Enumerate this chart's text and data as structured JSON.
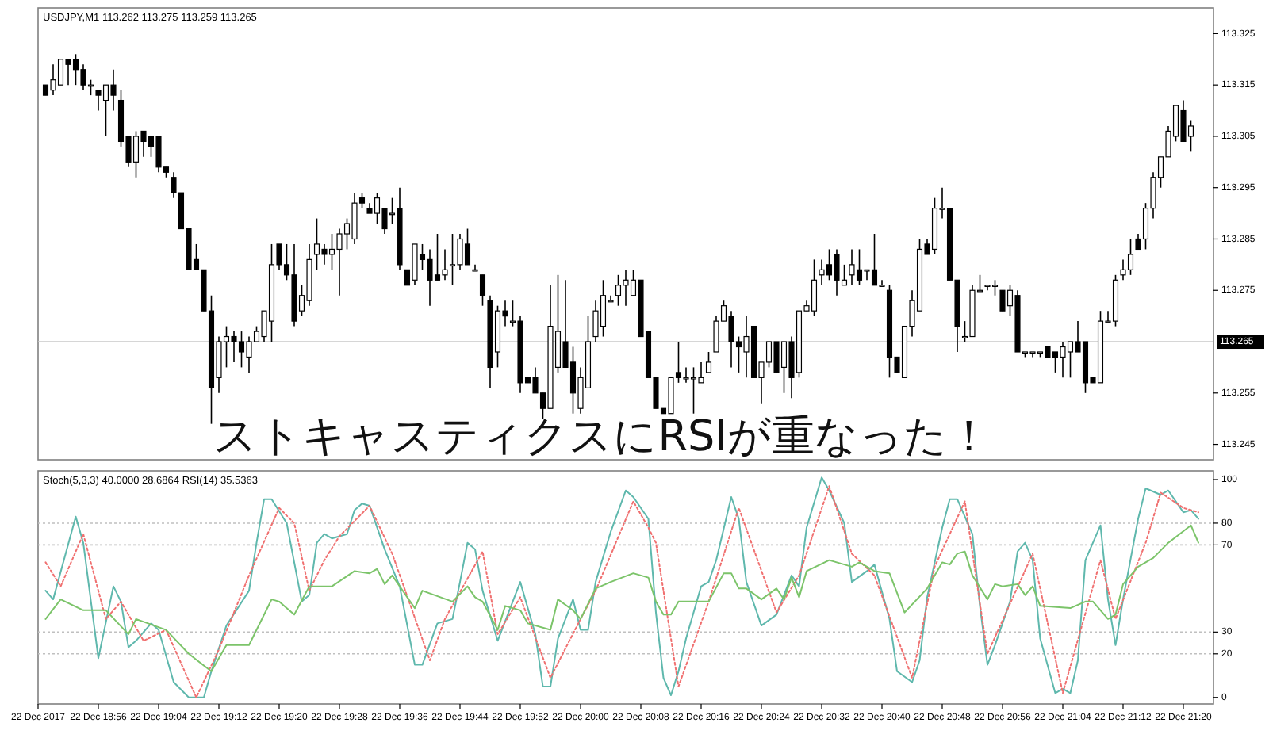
{
  "chart_data": [
    {
      "type": "candlestick",
      "title": "USDJPY,M1 113.262 113.275 113.259 113.265",
      "tick_labels": "y",
      "xlim": [
        "2017-12-22T18:48",
        "2017-12-22T21:24"
      ],
      "ylim": [
        113.242,
        113.33
      ],
      "yticks": [
        113.325,
        113.315,
        113.305,
        113.295,
        113.285,
        113.275,
        113.255,
        113.245
      ],
      "ref_lines": [
        {
          "axis": "y",
          "value": 113.265,
          "label": "113.265",
          "color": "#c8c8c8"
        }
      ],
      "annotations": [
        "ストキャスティクスにRSIが重なった！"
      ],
      "x": [
        "2017-12-22T18:49",
        "2017-12-22T18:50",
        "2017-12-22T18:51",
        "2017-12-22T18:52",
        "2017-12-22T18:53",
        "2017-12-22T18:54",
        "2017-12-22T18:55",
        "2017-12-22T18:56",
        "2017-12-22T18:57",
        "2017-12-22T18:58",
        "2017-12-22T18:59",
        "2017-12-22T19:00",
        "2017-12-22T19:01",
        "2017-12-22T19:02",
        "2017-12-22T19:03",
        "2017-12-22T19:04",
        "2017-12-22T19:05",
        "2017-12-22T19:06",
        "2017-12-22T19:07",
        "2017-12-22T19:08",
        "2017-12-22T19:09",
        "2017-12-22T19:10",
        "2017-12-22T19:11",
        "2017-12-22T19:12",
        "2017-12-22T19:13",
        "2017-12-22T19:14",
        "2017-12-22T19:15",
        "2017-12-22T19:16",
        "2017-12-22T19:17",
        "2017-12-22T19:18",
        "2017-12-22T19:19",
        "2017-12-22T19:20",
        "2017-12-22T19:21",
        "2017-12-22T19:22",
        "2017-12-22T19:23",
        "2017-12-22T19:24",
        "2017-12-22T19:25",
        "2017-12-22T19:26",
        "2017-12-22T19:27",
        "2017-12-22T19:28",
        "2017-12-22T19:29",
        "2017-12-22T19:30",
        "2017-12-22T19:31",
        "2017-12-22T19:32",
        "2017-12-22T19:33",
        "2017-12-22T19:34",
        "2017-12-22T19:35",
        "2017-12-22T19:36",
        "2017-12-22T19:37",
        "2017-12-22T19:38",
        "2017-12-22T19:39",
        "2017-12-22T19:40",
        "2017-12-22T19:41",
        "2017-12-22T19:42",
        "2017-12-22T19:43",
        "2017-12-22T19:44",
        "2017-12-22T19:45",
        "2017-12-22T19:46",
        "2017-12-22T19:47",
        "2017-12-22T19:48",
        "2017-12-22T19:49",
        "2017-12-22T19:50",
        "2017-12-22T19:51",
        "2017-12-22T19:52",
        "2017-12-22T19:53",
        "2017-12-22T19:54",
        "2017-12-22T19:55",
        "2017-12-22T19:56",
        "2017-12-22T19:57",
        "2017-12-22T19:58",
        "2017-12-22T19:59",
        "2017-12-22T20:00",
        "2017-12-22T20:01",
        "2017-12-22T20:02",
        "2017-12-22T20:03",
        "2017-12-22T20:04",
        "2017-12-22T20:05",
        "2017-12-22T20:06",
        "2017-12-22T20:07",
        "2017-12-22T20:08",
        "2017-12-22T20:09",
        "2017-12-22T20:10",
        "2017-12-22T20:11",
        "2017-12-22T20:12",
        "2017-12-22T20:13",
        "2017-12-22T20:14",
        "2017-12-22T20:15",
        "2017-12-22T20:16",
        "2017-12-22T20:17",
        "2017-12-22T20:18",
        "2017-12-22T20:19",
        "2017-12-22T20:20",
        "2017-12-22T20:21",
        "2017-12-22T20:22",
        "2017-12-22T20:23",
        "2017-12-22T20:24",
        "2017-12-22T20:25",
        "2017-12-22T20:26",
        "2017-12-22T20:27",
        "2017-12-22T20:28",
        "2017-12-22T20:29",
        "2017-12-22T20:30",
        "2017-12-22T20:31",
        "2017-12-22T20:32",
        "2017-12-22T20:33",
        "2017-12-22T20:34",
        "2017-12-22T20:35",
        "2017-12-22T20:36",
        "2017-12-22T20:37",
        "2017-12-22T20:38",
        "2017-12-22T20:39",
        "2017-12-22T20:40",
        "2017-12-22T20:41",
        "2017-12-22T20:42",
        "2017-12-22T20:43",
        "2017-12-22T20:44",
        "2017-12-22T20:45",
        "2017-12-22T20:46",
        "2017-12-22T20:47",
        "2017-12-22T20:48",
        "2017-12-22T20:49",
        "2017-12-22T20:50",
        "2017-12-22T20:51",
        "2017-12-22T20:52",
        "2017-12-22T20:53",
        "2017-12-22T20:54",
        "2017-12-22T20:55",
        "2017-12-22T20:56",
        "2017-12-22T20:57",
        "2017-12-22T20:58",
        "2017-12-22T20:59",
        "2017-12-22T21:00",
        "2017-12-22T21:01",
        "2017-12-22T21:02",
        "2017-12-22T21:03",
        "2017-12-22T21:04",
        "2017-12-22T21:05",
        "2017-12-22T21:06",
        "2017-12-22T21:07",
        "2017-12-22T21:08",
        "2017-12-22T21:09",
        "2017-12-22T21:10",
        "2017-12-22T21:11",
        "2017-12-22T21:12",
        "2017-12-22T21:13",
        "2017-12-22T21:14",
        "2017-12-22T21:15",
        "2017-12-22T21:16",
        "2017-12-22T21:17",
        "2017-12-22T21:18",
        "2017-12-22T21:19",
        "2017-12-22T21:20",
        "2017-12-22T21:21"
      ],
      "ohlc": [
        [
          113.315,
          113.315,
          113.313,
          113.313
        ],
        [
          113.314,
          113.319,
          113.313,
          113.316
        ],
        [
          113.315,
          113.32,
          113.315,
          113.32
        ],
        [
          113.32,
          113.32,
          113.315,
          113.319
        ],
        [
          113.32,
          113.321,
          113.315,
          113.318
        ],
        [
          113.318,
          113.319,
          113.314,
          113.315
        ],
        [
          113.315,
          113.316,
          113.313,
          113.315
        ],
        [
          113.314,
          113.314,
          113.31,
          113.313
        ],
        [
          113.312,
          113.315,
          113.305,
          113.315
        ],
        [
          113.315,
          113.318,
          113.31,
          113.313
        ],
        [
          113.312,
          113.314,
          113.303,
          113.304
        ],
        [
          113.305,
          113.305,
          113.299,
          113.3
        ],
        [
          113.3,
          113.306,
          113.297,
          113.305
        ],
        [
          113.306,
          113.306,
          113.301,
          113.304
        ],
        [
          113.305,
          113.305,
          113.301,
          113.303
        ],
        [
          113.305,
          113.305,
          113.298,
          113.299
        ],
        [
          113.299,
          113.299,
          113.297,
          113.298
        ],
        [
          113.297,
          113.298,
          113.293,
          113.294
        ],
        [
          113.294,
          113.294,
          113.287,
          113.287
        ],
        [
          113.287,
          113.287,
          113.279,
          113.279
        ],
        [
          113.281,
          113.284,
          113.279,
          113.279
        ],
        [
          113.279,
          113.279,
          113.271,
          113.271
        ],
        [
          113.271,
          113.274,
          113.249,
          113.256
        ],
        [
          113.258,
          113.266,
          113.255,
          113.265
        ],
        [
          113.265,
          113.268,
          113.26,
          113.266
        ],
        [
          113.266,
          113.267,
          113.261,
          113.265
        ],
        [
          113.265,
          113.267,
          113.26,
          113.263
        ],
        [
          113.262,
          113.266,
          113.259,
          113.265
        ],
        [
          113.265,
          113.268,
          113.265,
          113.267
        ],
        [
          113.266,
          113.271,
          113.265,
          113.271
        ],
        [
          113.269,
          113.284,
          113.265,
          113.28
        ],
        [
          113.284,
          113.284,
          113.279,
          113.28
        ],
        [
          113.28,
          113.284,
          113.277,
          113.278
        ],
        [
          113.278,
          113.284,
          113.268,
          113.269
        ],
        [
          113.271,
          113.276,
          113.27,
          113.274
        ],
        [
          113.273,
          113.284,
          113.272,
          113.281
        ],
        [
          113.282,
          113.289,
          113.279,
          113.284
        ],
        [
          113.283,
          113.284,
          113.28,
          113.282
        ],
        [
          113.282,
          113.286,
          113.279,
          113.283
        ],
        [
          113.283,
          113.287,
          113.274,
          113.286
        ],
        [
          113.286,
          113.289,
          113.283,
          113.288
        ],
        [
          113.285,
          113.294,
          113.284,
          113.292
        ],
        [
          113.293,
          113.294,
          113.291,
          113.292
        ],
        [
          113.291,
          113.292,
          113.29,
          113.29
        ],
        [
          113.29,
          113.294,
          113.288,
          113.293
        ],
        [
          113.291,
          113.291,
          113.286,
          113.287
        ],
        [
          113.29,
          113.293,
          113.288,
          113.29
        ],
        [
          113.291,
          113.295,
          113.279,
          113.28
        ],
        [
          113.279,
          113.279,
          113.276,
          113.276
        ],
        [
          113.277,
          113.284,
          113.276,
          113.284
        ],
        [
          113.282,
          113.284,
          113.279,
          113.281
        ],
        [
          113.281,
          113.283,
          113.272,
          113.277
        ],
        [
          113.278,
          113.286,
          113.277,
          113.277
        ],
        [
          113.278,
          113.283,
          113.277,
          113.279
        ],
        [
          113.28,
          113.286,
          113.276,
          113.28
        ],
        [
          113.28,
          113.286,
          113.279,
          113.285
        ],
        [
          113.284,
          113.287,
          113.28,
          113.28
        ],
        [
          113.279,
          113.28,
          113.279,
          113.279
        ],
        [
          113.278,
          113.278,
          113.272,
          113.274
        ],
        [
          113.273,
          113.274,
          113.256,
          113.26
        ],
        [
          113.263,
          113.272,
          113.26,
          113.271
        ],
        [
          113.271,
          113.273,
          113.268,
          113.27
        ],
        [
          113.269,
          113.273,
          113.268,
          113.269
        ],
        [
          113.269,
          113.27,
          113.255,
          113.257
        ],
        [
          113.258,
          113.258,
          113.257,
          113.257
        ],
        [
          113.258,
          113.26,
          113.255,
          113.255
        ],
        [
          113.255,
          113.255,
          113.25,
          113.252
        ],
        [
          113.252,
          113.276,
          113.252,
          113.268
        ],
        [
          113.26,
          113.278,
          113.259,
          113.267
        ],
        [
          113.265,
          113.277,
          113.26,
          113.26
        ],
        [
          113.261,
          113.264,
          113.251,
          113.255
        ],
        [
          113.252,
          113.26,
          113.251,
          113.258
        ],
        [
          113.256,
          113.27,
          113.256,
          113.265
        ],
        [
          113.266,
          113.273,
          113.265,
          113.271
        ],
        [
          113.268,
          113.277,
          113.266,
          113.274
        ],
        [
          113.273,
          113.274,
          113.273,
          113.273
        ],
        [
          113.274,
          113.278,
          113.272,
          113.276
        ],
        [
          113.276,
          113.279,
          113.272,
          113.277
        ],
        [
          113.274,
          113.279,
          113.274,
          113.277
        ],
        [
          113.277,
          113.277,
          113.266,
          113.266
        ],
        [
          113.267,
          113.267,
          113.258,
          113.258
        ],
        [
          113.258,
          113.258,
          113.252,
          113.252
        ],
        [
          113.252,
          113.252,
          113.251,
          113.251
        ],
        [
          113.251,
          113.258,
          113.251,
          113.258
        ],
        [
          113.259,
          113.265,
          113.257,
          113.258
        ],
        [
          113.258,
          113.26,
          113.257,
          113.258
        ],
        [
          113.258,
          113.26,
          113.251,
          113.258
        ],
        [
          113.257,
          113.261,
          113.257,
          113.258
        ],
        [
          113.259,
          113.263,
          113.259,
          113.261
        ],
        [
          113.263,
          113.27,
          113.263,
          113.269
        ],
        [
          113.269,
          113.273,
          113.269,
          113.272
        ],
        [
          113.27,
          113.271,
          113.26,
          113.265
        ],
        [
          113.265,
          113.266,
          113.259,
          113.264
        ],
        [
          113.263,
          113.27,
          113.258,
          113.266
        ],
        [
          113.268,
          113.268,
          113.258,
          113.258
        ],
        [
          113.258,
          113.261,
          113.253,
          113.261
        ],
        [
          113.261,
          113.265,
          113.26,
          113.265
        ],
        [
          113.265,
          113.265,
          113.259,
          113.259
        ],
        [
          113.26,
          113.265,
          113.255,
          113.265
        ],
        [
          113.265,
          113.266,
          113.254,
          113.258
        ],
        [
          113.259,
          113.271,
          113.258,
          113.271
        ],
        [
          113.271,
          113.273,
          113.271,
          113.272
        ],
        [
          113.271,
          113.281,
          113.27,
          113.277
        ],
        [
          113.278,
          113.281,
          113.276,
          113.279
        ],
        [
          113.28,
          113.283,
          113.277,
          113.278
        ],
        [
          113.282,
          113.283,
          113.274,
          113.277
        ],
        [
          113.276,
          113.28,
          113.276,
          113.277
        ],
        [
          113.278,
          113.283,
          113.276,
          113.28
        ],
        [
          113.279,
          113.283,
          113.276,
          113.277
        ],
        [
          113.279,
          113.279,
          113.277,
          113.279
        ],
        [
          113.279,
          113.286,
          113.276,
          113.276
        ],
        [
          113.276,
          113.277,
          113.276,
          113.276
        ],
        [
          113.275,
          113.276,
          113.258,
          113.262
        ],
        [
          113.262,
          113.262,
          113.259,
          113.259
        ],
        [
          113.258,
          113.268,
          113.258,
          113.268
        ],
        [
          113.268,
          113.275,
          113.266,
          113.273
        ],
        [
          113.271,
          113.285,
          113.271,
          113.283
        ],
        [
          113.284,
          113.285,
          113.282,
          113.282
        ],
        [
          113.283,
          113.293,
          113.282,
          113.291
        ],
        [
          113.291,
          113.295,
          113.289,
          113.291
        ],
        [
          113.291,
          113.291,
          113.277,
          113.277
        ],
        [
          113.277,
          113.277,
          113.263,
          113.268
        ],
        [
          113.266,
          113.269,
          113.265,
          113.266
        ],
        [
          113.266,
          113.276,
          113.266,
          113.275
        ],
        [
          113.275,
          113.278,
          113.275,
          113.275
        ],
        [
          113.276,
          113.276,
          113.275,
          113.276
        ],
        [
          113.276,
          113.277,
          113.274,
          113.276
        ],
        [
          113.275,
          113.275,
          113.271,
          113.271
        ],
        [
          113.272,
          113.276,
          113.27,
          113.275
        ],
        [
          113.274,
          113.275,
          113.263,
          113.263
        ],
        [
          113.263,
          113.263,
          113.262,
          113.263
        ],
        [
          113.263,
          113.263,
          113.262,
          113.263
        ],
        [
          113.263,
          113.263,
          113.262,
          113.263
        ],
        [
          113.264,
          113.264,
          113.262,
          113.262
        ],
        [
          113.263,
          113.263,
          113.259,
          113.262
        ],
        [
          113.262,
          113.265,
          113.258,
          113.264
        ],
        [
          113.263,
          113.265,
          113.258,
          113.265
        ],
        [
          113.265,
          113.269,
          113.263,
          113.263
        ],
        [
          113.265,
          113.265,
          113.255,
          113.257
        ],
        [
          113.258,
          113.258,
          113.257,
          113.257
        ],
        [
          113.257,
          113.271,
          113.257,
          113.269
        ],
        [
          113.269,
          113.271,
          113.269,
          113.269
        ],
        [
          113.269,
          113.278,
          113.268,
          113.277
        ],
        [
          113.278,
          113.281,
          113.277,
          113.279
        ],
        [
          113.279,
          113.285,
          113.278,
          113.282
        ],
        [
          113.285,
          113.286,
          113.283,
          113.283
        ],
        [
          113.285,
          113.292,
          113.283,
          113.291
        ],
        [
          113.291,
          113.298,
          113.289,
          113.297
        ],
        [
          113.297,
          113.301,
          113.295,
          113.301
        ],
        [
          113.301,
          113.307,
          113.301,
          113.306
        ],
        [
          113.305,
          113.311,
          113.304,
          113.311
        ],
        [
          113.31,
          113.312,
          113.304,
          113.304
        ],
        [
          113.305,
          113.308,
          113.302,
          113.307
        ]
      ]
    },
    {
      "type": "line",
      "title": "Stoch(5,3,3) 40.0000 28.6864 RSI(14) 35.5363",
      "xlim": [
        "2017-12-22T18:48",
        "2017-12-22T21:24"
      ],
      "ylim": [
        -3,
        104
      ],
      "yticks": [
        0,
        20,
        30,
        70,
        80,
        100
      ],
      "xticks": [
        {
          "value": "2017-12-22T18:48",
          "label": "22 Dec 2017"
        },
        {
          "value": "2017-12-22T18:56",
          "label": "22 Dec 18:56"
        },
        {
          "value": "2017-12-22T19:04",
          "label": "22 Dec 19:04"
        },
        {
          "value": "2017-12-22T19:12",
          "label": "22 Dec 19:12"
        },
        {
          "value": "2017-12-22T19:20",
          "label": "22 Dec 19:20"
        },
        {
          "value": "2017-12-22T19:28",
          "label": "22 Dec 19:28"
        },
        {
          "value": "2017-12-22T19:36",
          "label": "22 Dec 19:36"
        },
        {
          "value": "2017-12-22T19:44",
          "label": "22 Dec 19:44"
        },
        {
          "value": "2017-12-22T19:52",
          "label": "22 Dec 19:52"
        },
        {
          "value": "2017-12-22T20:00",
          "label": "22 Dec 20:00"
        },
        {
          "value": "2017-12-22T20:08",
          "label": "22 Dec 20:08"
        },
        {
          "value": "2017-12-22T20:16",
          "label": "22 Dec 20:16"
        },
        {
          "value": "2017-12-22T20:24",
          "label": "22 Dec 20:24"
        },
        {
          "value": "2017-12-22T20:32",
          "label": "22 Dec 20:32"
        },
        {
          "value": "2017-12-22T20:40",
          "label": "22 Dec 20:40"
        },
        {
          "value": "2017-12-22T20:48",
          "label": "22 Dec 20:48"
        },
        {
          "value": "2017-12-22T20:56",
          "label": "22 Dec 20:56"
        },
        {
          "value": "2017-12-22T21:04",
          "label": "22 Dec 21:04"
        },
        {
          "value": "2017-12-22T21:12",
          "label": "22 Dec 21:12"
        },
        {
          "value": "2017-12-22T21:20",
          "label": "22 Dec 21:20"
        }
      ],
      "ref_lines": [
        {
          "axis": "y",
          "value": 80,
          "color": "#c0c0c0",
          "line_style": "dotted"
        },
        {
          "axis": "y",
          "value": 70,
          "color": "#c0c0c0",
          "line_style": "dotted"
        },
        {
          "axis": "y",
          "value": 30,
          "color": "#c0c0c0",
          "line_style": "dotted"
        },
        {
          "axis": "y",
          "value": 20,
          "color": "#c0c0c0",
          "line_style": "dotted"
        }
      ],
      "series": [
        {
          "color": "#5fb8ad",
          "line_style": "solid",
          "x": [
            "2017-12-22T18:49",
            "2017-12-22T18:50",
            "2017-12-22T18:53",
            "2017-12-22T18:54",
            "2017-12-22T18:56",
            "2017-12-22T18:58",
            "2017-12-22T18:59",
            "2017-12-22T19:00",
            "2017-12-22T19:01",
            "2017-12-22T19:03",
            "2017-12-22T19:04",
            "2017-12-22T19:06",
            "2017-12-22T19:08",
            "2017-12-22T19:10",
            "2017-12-22T19:11",
            "2017-12-22T19:13",
            "2017-12-22T19:16",
            "2017-12-22T19:17",
            "2017-12-22T19:18",
            "2017-12-22T19:19",
            "2017-12-22T19:21",
            "2017-12-22T19:23",
            "2017-12-22T19:24",
            "2017-12-22T19:25",
            "2017-12-22T19:26",
            "2017-12-22T19:27",
            "2017-12-22T19:29",
            "2017-12-22T19:30",
            "2017-12-22T19:31",
            "2017-12-22T19:32",
            "2017-12-22T19:34",
            "2017-12-22T19:36",
            "2017-12-22T19:38",
            "2017-12-22T19:39",
            "2017-12-22T19:41",
            "2017-12-22T19:43",
            "2017-12-22T19:44",
            "2017-12-22T19:45",
            "2017-12-22T19:46",
            "2017-12-22T19:47",
            "2017-12-22T19:49",
            "2017-12-22T19:50",
            "2017-12-22T19:52",
            "2017-12-22T19:53",
            "2017-12-22T19:54",
            "2017-12-22T19:55",
            "2017-12-22T19:56",
            "2017-12-22T19:57",
            "2017-12-22T19:59",
            "2017-12-22T20:00",
            "2017-12-22T20:01",
            "2017-12-22T20:02",
            "2017-12-22T20:04",
            "2017-12-22T20:06",
            "2017-12-22T20:07",
            "2017-12-22T20:09",
            "2017-12-22T20:10",
            "2017-12-22T20:11",
            "2017-12-22T20:12",
            "2017-12-22T20:13",
            "2017-12-22T20:14",
            "2017-12-22T20:16",
            "2017-12-22T20:17",
            "2017-12-22T20:18",
            "2017-12-22T20:20",
            "2017-12-22T20:21",
            "2017-12-22T20:22",
            "2017-12-22T20:24",
            "2017-12-22T20:26",
            "2017-12-22T20:28",
            "2017-12-22T20:29",
            "2017-12-22T20:30",
            "2017-12-22T20:32",
            "2017-12-22T20:33",
            "2017-12-22T20:35",
            "2017-12-22T20:36",
            "2017-12-22T20:38",
            "2017-12-22T20:39",
            "2017-12-22T20:41",
            "2017-12-22T20:42",
            "2017-12-22T20:44",
            "2017-12-22T20:45",
            "2017-12-22T20:46",
            "2017-12-22T20:48",
            "2017-12-22T20:49",
            "2017-12-22T20:50",
            "2017-12-22T20:52",
            "2017-12-22T20:53",
            "2017-12-22T20:54",
            "2017-12-22T20:55",
            "2017-12-22T20:57",
            "2017-12-22T20:58",
            "2017-12-22T20:59",
            "2017-12-22T21:00",
            "2017-12-22T21:01",
            "2017-12-22T21:03",
            "2017-12-22T21:04",
            "2017-12-22T21:05",
            "2017-12-22T21:06",
            "2017-12-22T21:07",
            "2017-12-22T21:09",
            "2017-12-22T21:10",
            "2017-12-22T21:11",
            "2017-12-22T21:12",
            "2017-12-22T21:14",
            "2017-12-22T21:15",
            "2017-12-22T21:17",
            "2017-12-22T21:18",
            "2017-12-22T21:20",
            "2017-12-22T21:21",
            "2017-12-22T21:22"
          ],
          "values": [
            49,
            45,
            83,
            71,
            18,
            51,
            44,
            23,
            26,
            34,
            31,
            7,
            0,
            0,
            12,
            33,
            49,
            71,
            91,
            91,
            80,
            44,
            47,
            71,
            75,
            73,
            75,
            86,
            89,
            88,
            68,
            51,
            15,
            15,
            34,
            36,
            53,
            71,
            68,
            49,
            26,
            35,
            53,
            41,
            29,
            5,
            5,
            27,
            45,
            31,
            31,
            53,
            76,
            95,
            92,
            82,
            39,
            9,
            1,
            12,
            27,
            51,
            53,
            63,
            92,
            82,
            53,
            33,
            38,
            56,
            51,
            78,
            101,
            95,
            80,
            53,
            58,
            61,
            36,
            12,
            7,
            17,
            46,
            78,
            91,
            91,
            75,
            42,
            15,
            24,
            44,
            67,
            71,
            63,
            27,
            2,
            4,
            2,
            17,
            63,
            79,
            45,
            24,
            45,
            82,
            96,
            93,
            95,
            85,
            86,
            82
          ]
        },
        {
          "color": "#f07070",
          "line_style": "dotted",
          "x": [
            "2017-12-22T18:49",
            "2017-12-22T18:51",
            "2017-12-22T18:54",
            "2017-12-22T18:57",
            "2017-12-22T18:59",
            "2017-12-22T19:02",
            "2017-12-22T19:05",
            "2017-12-22T19:09",
            "2017-12-22T19:12",
            "2017-12-22T19:16",
            "2017-12-22T19:20",
            "2017-12-22T19:22",
            "2017-12-22T19:24",
            "2017-12-22T19:26",
            "2017-12-22T19:28",
            "2017-12-22T19:32",
            "2017-12-22T19:35",
            "2017-12-22T19:40",
            "2017-12-22T19:42",
            "2017-12-22T19:47",
            "2017-12-22T19:49",
            "2017-12-22T19:52",
            "2017-12-22T19:56",
            "2017-12-22T20:00",
            "2017-12-22T20:02",
            "2017-12-22T20:07",
            "2017-12-22T20:09",
            "2017-12-22T20:10",
            "2017-12-22T20:13",
            "2017-12-22T20:17",
            "2017-12-22T20:21",
            "2017-12-22T20:26",
            "2017-12-22T20:29",
            "2017-12-22T20:33",
            "2017-12-22T20:36",
            "2017-12-22T20:39",
            "2017-12-22T20:44",
            "2017-12-22T20:47",
            "2017-12-22T20:51",
            "2017-12-22T20:54",
            "2017-12-22T21:00",
            "2017-12-22T21:04",
            "2017-12-22T21:09",
            "2017-12-22T21:11",
            "2017-12-22T21:15",
            "2017-12-22T21:17",
            "2017-12-22T21:20",
            "2017-12-22T21:22"
          ],
          "values": [
            62,
            51,
            75,
            36,
            44,
            26,
            31,
            0,
            22,
            56,
            87,
            80,
            49,
            63,
            74,
            88,
            66,
            17,
            36,
            67,
            29,
            46,
            9,
            36,
            49,
            90,
            78,
            71,
            5,
            44,
            87,
            39,
            56,
            97,
            66,
            56,
            9,
            60,
            90,
            20,
            66,
            2,
            63,
            36,
            71,
            94,
            87,
            85
          ]
        },
        {
          "color": "#7cc46a",
          "line_style": "solid",
          "x": [
            "2017-12-22T18:49",
            "2017-12-22T18:51",
            "2017-12-22T18:54",
            "2017-12-22T18:57",
            "2017-12-22T19:00",
            "2017-12-22T19:01",
            "2017-12-22T19:05",
            "2017-12-22T19:08",
            "2017-12-22T19:11",
            "2017-12-22T19:13",
            "2017-12-22T19:16",
            "2017-12-22T19:19",
            "2017-12-22T19:20",
            "2017-12-22T19:22",
            "2017-12-22T19:24",
            "2017-12-22T19:27",
            "2017-12-22T19:30",
            "2017-12-22T19:32",
            "2017-12-22T19:33",
            "2017-12-22T19:34",
            "2017-12-22T19:35",
            "2017-12-22T19:38",
            "2017-12-22T19:39",
            "2017-12-22T19:43",
            "2017-12-22T19:45",
            "2017-12-22T19:46",
            "2017-12-22T19:47",
            "2017-12-22T19:49",
            "2017-12-22T19:50",
            "2017-12-22T19:52",
            "2017-12-22T19:53",
            "2017-12-22T19:56",
            "2017-12-22T19:57",
            "2017-12-22T19:59",
            "2017-12-22T20:00",
            "2017-12-22T20:02",
            "2017-12-22T20:04",
            "2017-12-22T20:07",
            "2017-12-22T20:09",
            "2017-12-22T20:10",
            "2017-12-22T20:11",
            "2017-12-22T20:12",
            "2017-12-22T20:13",
            "2017-12-22T20:17",
            "2017-12-22T20:19",
            "2017-12-22T20:20",
            "2017-12-22T20:21",
            "2017-12-22T20:22",
            "2017-12-22T20:24",
            "2017-12-22T20:26",
            "2017-12-22T20:27",
            "2017-12-22T20:28",
            "2017-12-22T20:29",
            "2017-12-22T20:30",
            "2017-12-22T20:33",
            "2017-12-22T20:35",
            "2017-12-22T20:36",
            "2017-12-22T20:37",
            "2017-12-22T20:39",
            "2017-12-22T20:41",
            "2017-12-22T20:43",
            "2017-12-22T20:46",
            "2017-12-22T20:48",
            "2017-12-22T20:49",
            "2017-12-22T20:50",
            "2017-12-22T20:51",
            "2017-12-22T20:52",
            "2017-12-22T20:54",
            "2017-12-22T20:55",
            "2017-12-22T20:56",
            "2017-12-22T20:58",
            "2017-12-22T20:59",
            "2017-12-22T21:00",
            "2017-12-22T21:01",
            "2017-12-22T21:05",
            "2017-12-22T21:07",
            "2017-12-22T21:08",
            "2017-12-22T21:10",
            "2017-12-22T21:11",
            "2017-12-22T21:12",
            "2017-12-22T21:14",
            "2017-12-22T21:15",
            "2017-12-22T21:16",
            "2017-12-22T21:18",
            "2017-12-22T21:21",
            "2017-12-22T21:22"
          ],
          "values": [
            36,
            45,
            40,
            40,
            29,
            36,
            31,
            20,
            12,
            24,
            24,
            45,
            44,
            38,
            51,
            51,
            58,
            57,
            59,
            52,
            56,
            41,
            49,
            44,
            51,
            46,
            44,
            31,
            42,
            40,
            34,
            31,
            45,
            40,
            36,
            50,
            53,
            57,
            55,
            44,
            38,
            38,
            44,
            44,
            57,
            57,
            50,
            50,
            45,
            50,
            45,
            55,
            46,
            58,
            63,
            61,
            60,
            62,
            58,
            57,
            39,
            50,
            62,
            61,
            66,
            67,
            56,
            45,
            52,
            51,
            52,
            47,
            51,
            42,
            41,
            44,
            44,
            36,
            38,
            52,
            60,
            62,
            64,
            71,
            79,
            71
          ]
        }
      ]
    }
  ]
}
